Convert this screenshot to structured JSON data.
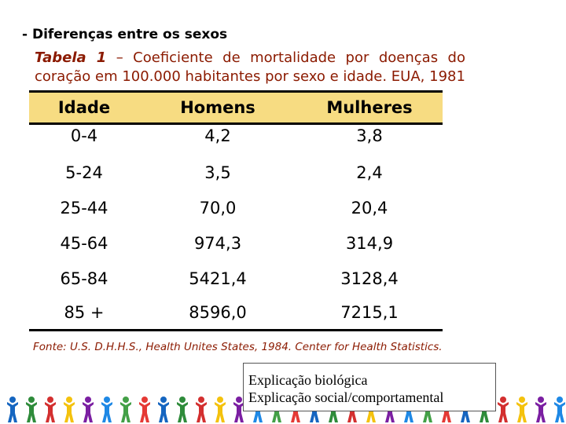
{
  "heading": "- Diferenças entre os sexos",
  "caption": {
    "table_label": "Tabela 1",
    "dash": "–",
    "line1_rest": "Coeficiente de mortalidade por doenças do",
    "line2": "coração em 100.000 habitantes por sexo e idade. EUA, 1981."
  },
  "table": {
    "headers": [
      "Idade",
      "Homens",
      "Mulheres"
    ],
    "rows": [
      [
        "0-4",
        "4,2",
        "3,8"
      ],
      [
        "5-24",
        "3,5",
        "2,4"
      ],
      [
        "25-44",
        "70,0",
        "20,4"
      ],
      [
        "45-64",
        "974,3",
        "314,9"
      ],
      [
        "65-84",
        "5421,4",
        "3128,4"
      ],
      [
        "85 +",
        "8596,0",
        "7215,1"
      ]
    ],
    "header_bg": "#F7DC82"
  },
  "source": "Fonte: U.S. D.H.H.S., Health Unites States, 1984. Center for Health Statistics.",
  "notes": {
    "line1": "Explicação biológica",
    "line2": "Explicação social/comportamental"
  },
  "decor": {
    "figure_colors": [
      "#1565C0",
      "#2E8B3A",
      "#D32F2F",
      "#F4C20D",
      "#7B1FA2",
      "#1E88E5",
      "#43A047",
      "#E53935"
    ]
  }
}
